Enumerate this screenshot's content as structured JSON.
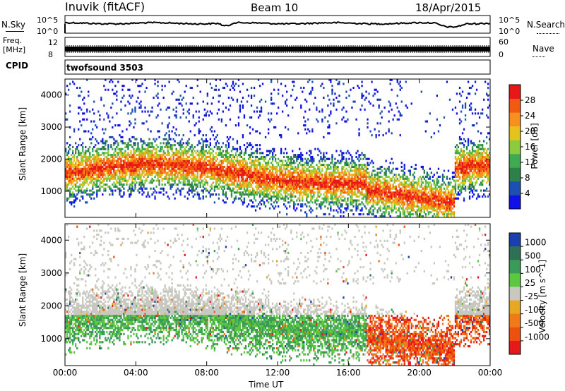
{
  "header": {
    "station": "Inuvik (fitACF)",
    "beam": "Beam 10",
    "date": "18/Apr/2015"
  },
  "strips": {
    "nsky_label": "N.Sky",
    "nsky_ticks": [
      "10^5",
      "10^0"
    ],
    "nsearch_label": "N.Search",
    "nsearch_ticks": [
      "10^5",
      "10^0"
    ],
    "freq_label_top": "Freq.",
    "freq_label_bottom": "[MHz]",
    "freq_ticks": [
      "12",
      "8"
    ],
    "nave_label": "Nave",
    "nave_ticks": [
      "60",
      "0"
    ],
    "cpid_label": "CPID",
    "cpid_value": "twofsound 3503"
  },
  "colors": {
    "power": [
      "#1010e8",
      "#1c4fb0",
      "#2f7f4a",
      "#3faa4f",
      "#8ccc3c",
      "#e6c31c",
      "#f7901c",
      "#f25a12",
      "#e81818"
    ],
    "velocity": [
      "#1a3fb0",
      "#2f6f55",
      "#3a9b58",
      "#5cc842",
      "#c8c8c0",
      "#e6a820",
      "#f07a18",
      "#ee5010",
      "#e61a1a"
    ]
  },
  "chart_data": [
    {
      "type": "heatmap",
      "title": "",
      "xlabel": "Time UT",
      "ylabel": "Slant Range [km]",
      "x_ticks": [
        "00:00",
        "04:00",
        "08:00",
        "12:00",
        "16:00",
        "20:00",
        "00:00"
      ],
      "xlim": [
        0,
        24
      ],
      "y_ticks": [
        1000,
        2000,
        3000,
        4000
      ],
      "ylim": [
        180,
        4500
      ],
      "colorbar_label": "Power [dB]",
      "colorbar_ticks": [
        4,
        8,
        12,
        16,
        20,
        24,
        28
      ],
      "colorbar_range": [
        0,
        32
      ]
    },
    {
      "type": "heatmap",
      "title": "",
      "xlabel": "Time UT",
      "ylabel": "Slant Range [km]",
      "x_ticks": [
        "00:00",
        "04:00",
        "08:00",
        "12:00",
        "16:00",
        "20:00",
        "00:00"
      ],
      "xlim": [
        0,
        24
      ],
      "y_ticks": [
        1000,
        2000,
        3000,
        4000
      ],
      "ylim": [
        180,
        4500
      ],
      "colorbar_label": "Velocity [m s^-1]",
      "colorbar_ticks": [
        "1000",
        "500",
        "100",
        "25",
        "-25",
        "-100",
        "-500",
        "-1000"
      ]
    }
  ]
}
